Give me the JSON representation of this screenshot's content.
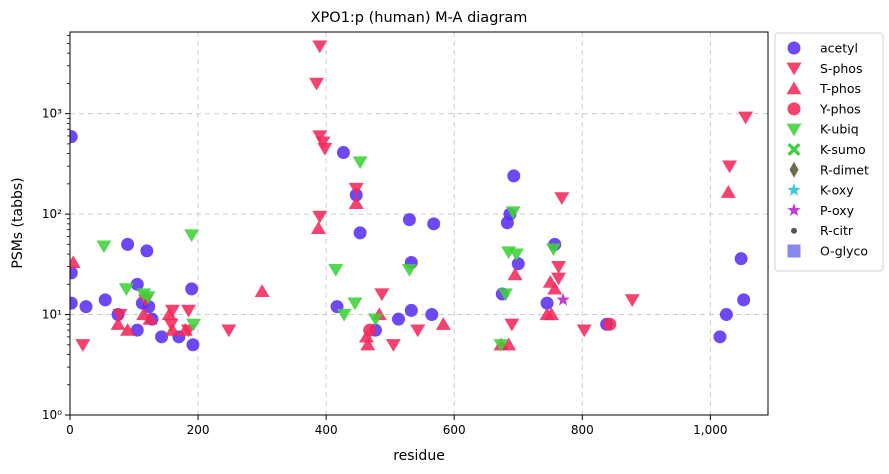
{
  "chart_data": {
    "type": "scatter",
    "title": "XPO1:p (human) M-A diagram",
    "xlabel": "residue",
    "ylabel": "PSMs (tabbs)",
    "xlim": [
      0,
      1090
    ],
    "ylim": [
      1,
      6500
    ],
    "yscale": "log",
    "grid": true,
    "legend_position": "outside-top-right",
    "x_ticks": [
      {
        "value": 0,
        "label": "0"
      },
      {
        "value": 200,
        "label": "200"
      },
      {
        "value": 400,
        "label": "400"
      },
      {
        "value": 600,
        "label": "600"
      },
      {
        "value": 800,
        "label": "800"
      },
      {
        "value": 1000,
        "label": "1,000"
      }
    ],
    "y_ticks": [
      {
        "value": 1,
        "label": "10⁰"
      },
      {
        "value": 10,
        "label": "10¹"
      },
      {
        "value": 100,
        "label": "10²"
      },
      {
        "value": 1000,
        "label": "10³"
      }
    ],
    "series": [
      {
        "name": "acetyl",
        "marker": "circle",
        "color": "#5a2ff0",
        "points": [
          [
            2,
            590
          ],
          [
            2,
            26
          ],
          [
            2,
            13
          ],
          [
            25,
            12
          ],
          [
            55,
            14
          ],
          [
            75,
            10
          ],
          [
            90,
            50
          ],
          [
            105,
            20
          ],
          [
            105,
            7
          ],
          [
            113,
            13
          ],
          [
            120,
            43
          ],
          [
            123,
            12
          ],
          [
            128,
            9
          ],
          [
            143,
            6
          ],
          [
            170,
            6
          ],
          [
            190,
            18
          ],
          [
            192,
            5
          ],
          [
            417,
            12
          ],
          [
            427,
            410
          ],
          [
            447,
            155
          ],
          [
            453,
            65
          ],
          [
            477,
            7
          ],
          [
            513,
            9
          ],
          [
            530,
            88
          ],
          [
            533,
            33
          ],
          [
            533,
            11
          ],
          [
            565,
            10
          ],
          [
            568,
            80
          ],
          [
            675,
            16
          ],
          [
            683,
            82
          ],
          [
            687,
            100
          ],
          [
            693,
            240
          ],
          [
            700,
            32
          ],
          [
            745,
            13
          ],
          [
            757,
            50
          ],
          [
            838,
            8
          ],
          [
            1015,
            6
          ],
          [
            1025,
            10
          ],
          [
            1048,
            36
          ],
          [
            1052,
            14
          ]
        ]
      },
      {
        "name": "S-phos",
        "marker": "triangle-down",
        "color": "#f5285a",
        "points": [
          [
            20,
            5
          ],
          [
            78,
            10
          ],
          [
            118,
            14
          ],
          [
            158,
            8
          ],
          [
            160,
            11
          ],
          [
            185,
            11
          ],
          [
            185,
            7
          ],
          [
            248,
            7
          ],
          [
            385,
            2000
          ],
          [
            390,
            4700
          ],
          [
            390,
            600
          ],
          [
            390,
            95
          ],
          [
            395,
            520
          ],
          [
            398,
            450
          ],
          [
            447,
            180
          ],
          [
            487,
            16
          ],
          [
            505,
            5
          ],
          [
            543,
            7
          ],
          [
            690,
            8
          ],
          [
            763,
            30
          ],
          [
            763,
            23
          ],
          [
            768,
            145
          ],
          [
            803,
            7
          ],
          [
            878,
            14
          ],
          [
            1030,
            300
          ],
          [
            1055,
            920
          ]
        ]
      },
      {
        "name": "T-phos",
        "marker": "triangle-up",
        "color": "#f5285a",
        "points": [
          [
            5,
            33
          ],
          [
            75,
            8
          ],
          [
            90,
            7
          ],
          [
            115,
            10
          ],
          [
            125,
            9
          ],
          [
            155,
            10
          ],
          [
            160,
            7
          ],
          [
            180,
            7
          ],
          [
            300,
            17
          ],
          [
            388,
            72
          ],
          [
            447,
            128
          ],
          [
            463,
            6
          ],
          [
            465,
            5
          ],
          [
            483,
            10
          ],
          [
            583,
            8
          ],
          [
            673,
            5
          ],
          [
            685,
            5
          ],
          [
            695,
            25
          ],
          [
            745,
            10
          ],
          [
            750,
            21
          ],
          [
            752,
            10
          ],
          [
            757,
            18
          ],
          [
            1028,
            165
          ]
        ]
      },
      {
        "name": "Y-phos",
        "marker": "circle",
        "color": "#f5285a",
        "points": [
          [
            468,
            7
          ],
          [
            843,
            8
          ]
        ]
      },
      {
        "name": "K-ubiq",
        "marker": "triangle-down",
        "color": "#3fd13a",
        "points": [
          [
            53,
            48
          ],
          [
            88,
            18
          ],
          [
            115,
            16
          ],
          [
            122,
            15
          ],
          [
            190,
            62
          ],
          [
            193,
            8
          ],
          [
            415,
            28
          ],
          [
            428,
            10
          ],
          [
            445,
            13
          ],
          [
            453,
            330
          ],
          [
            477,
            9
          ],
          [
            530,
            28
          ],
          [
            673,
            5
          ],
          [
            680,
            16
          ],
          [
            685,
            42
          ],
          [
            692,
            105
          ],
          [
            697,
            40
          ],
          [
            755,
            45
          ]
        ]
      },
      {
        "name": "K-sumo",
        "marker": "x-filled",
        "color": "#3fd13a",
        "points": []
      },
      {
        "name": "R-dimet",
        "marker": "diamond-thin",
        "color": "#6b6b48",
        "points": []
      },
      {
        "name": "K-oxy",
        "marker": "star",
        "color": "#3fc8d8",
        "points": []
      },
      {
        "name": "P-oxy",
        "marker": "star",
        "color": "#c13ccf",
        "points": [
          [
            770,
            14
          ]
        ]
      },
      {
        "name": "R-citr",
        "marker": "small-circle",
        "color": "#555555",
        "points": []
      },
      {
        "name": "O-glyco",
        "marker": "square",
        "color": "#7876e8",
        "points": []
      }
    ]
  }
}
